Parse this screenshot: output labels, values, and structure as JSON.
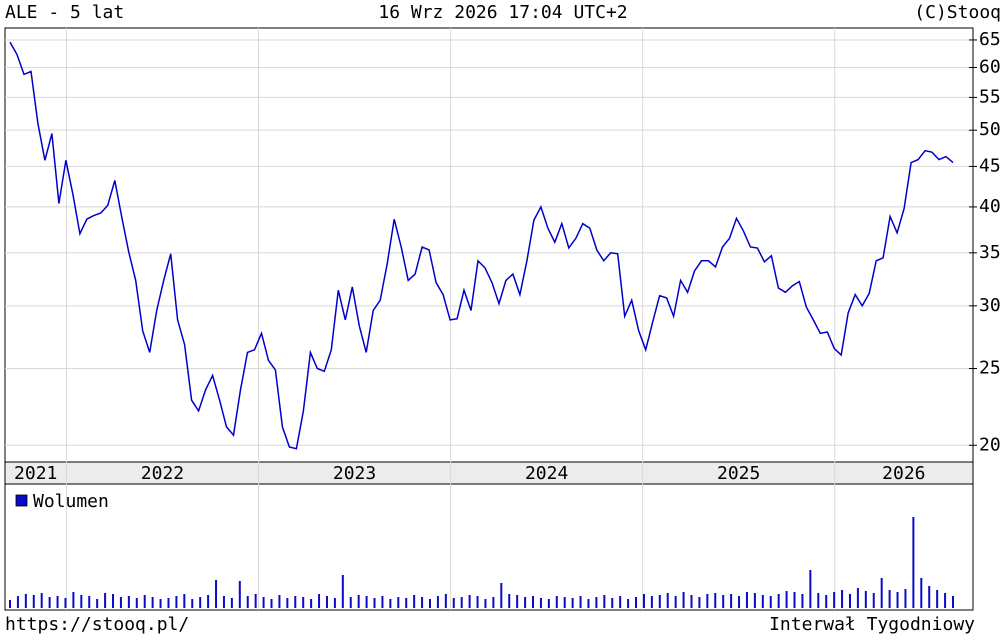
{
  "header": {
    "left": "ALE - 5 lat",
    "center": "16 Wrz 2026 17:04 UTC+2",
    "right": "(C)Stooq"
  },
  "chart_data": [
    {
      "type": "line",
      "log_scale": true,
      "grid": true,
      "series": [
        {
          "color": "#0000cc",
          "values": [
            64.6,
            62.3,
            58.8,
            59.3,
            51.0,
            45.8,
            49.5,
            40.4,
            45.8,
            41.5,
            37.0,
            38.6,
            39.0,
            39.3,
            40.2,
            43.2,
            38.8,
            35.1,
            32.3,
            27.9,
            26.2,
            29.6,
            32.3,
            34.9,
            28.8,
            26.8,
            22.8,
            22.1,
            23.5,
            24.5,
            22.8,
            21.1,
            20.6,
            23.5,
            26.2,
            26.4,
            27.7,
            25.6,
            24.9,
            21.1,
            19.9,
            19.8,
            22.1,
            26.2,
            25.0,
            24.8,
            26.4,
            31.4,
            28.8,
            31.7,
            28.3,
            26.2,
            29.6,
            30.5,
            33.9,
            38.6,
            35.6,
            32.3,
            32.9,
            35.6,
            35.3,
            32.1,
            31.0,
            28.8,
            28.9,
            31.4,
            29.6,
            34.2,
            33.5,
            32.1,
            30.2,
            32.3,
            32.9,
            31.0,
            34.2,
            38.5,
            40.0,
            37.6,
            36.1,
            38.1,
            35.5,
            36.5,
            38.1,
            37.6,
            35.3,
            34.2,
            35.0,
            34.9,
            29.1,
            30.5,
            27.9,
            26.4,
            28.6,
            30.9,
            30.7,
            29.1,
            32.3,
            31.2,
            33.2,
            34.2,
            34.2,
            33.6,
            35.6,
            36.5,
            38.7,
            37.3,
            35.6,
            35.5,
            34.1,
            34.7,
            31.6,
            31.2,
            31.8,
            32.2,
            29.9,
            28.8,
            27.7,
            27.8,
            26.5,
            26.0,
            29.4,
            31.0,
            30.0,
            31.1,
            34.2,
            34.5,
            38.9,
            37.1,
            39.8,
            45.5,
            45.9,
            47.1,
            46.9,
            45.9,
            46.3,
            45.5
          ]
        }
      ],
      "ylim": [
        19.05,
        67.3
      ],
      "yticks": [
        20,
        25,
        30,
        35,
        40,
        45,
        50,
        55,
        60,
        65
      ],
      "xlim": [
        2021.68,
        2026.72
      ],
      "xticks": [
        2021,
        2022,
        2023,
        2024,
        2025,
        2026
      ]
    },
    {
      "type": "bar",
      "ylim": [
        0,
        123
      ],
      "series": [
        {
          "name": "Wolumen",
          "color": "#0a0ac8",
          "values": [
            8,
            12,
            14,
            13,
            15,
            11,
            12,
            10,
            16,
            13,
            12,
            9,
            15,
            14,
            11,
            12,
            10,
            13,
            11,
            9,
            10,
            12,
            14,
            9,
            11,
            13,
            28,
            12,
            10,
            27,
            12,
            14,
            11,
            9,
            13,
            10,
            12,
            11,
            9,
            14,
            12,
            10,
            33,
            11,
            13,
            12,
            10,
            12,
            9,
            11,
            10,
            13,
            11,
            9,
            12,
            14,
            10,
            11,
            13,
            12,
            9,
            11,
            25,
            14,
            13,
            11,
            12,
            10,
            9,
            12,
            11,
            10,
            12,
            9,
            11,
            13,
            10,
            12,
            9,
            11,
            14,
            12,
            13,
            15,
            12,
            16,
            13,
            11,
            14,
            15,
            13,
            14,
            12,
            16,
            15,
            13,
            12,
            14,
            17,
            16,
            14,
            38,
            15,
            13,
            16,
            18,
            14,
            20,
            17,
            15,
            30,
            18,
            16,
            19,
            91,
            30,
            22,
            18,
            15,
            12
          ]
        }
      ]
    }
  ],
  "footer": {
    "left": "https://stooq.pl/",
    "right": "Interwał Tygodniowy"
  }
}
